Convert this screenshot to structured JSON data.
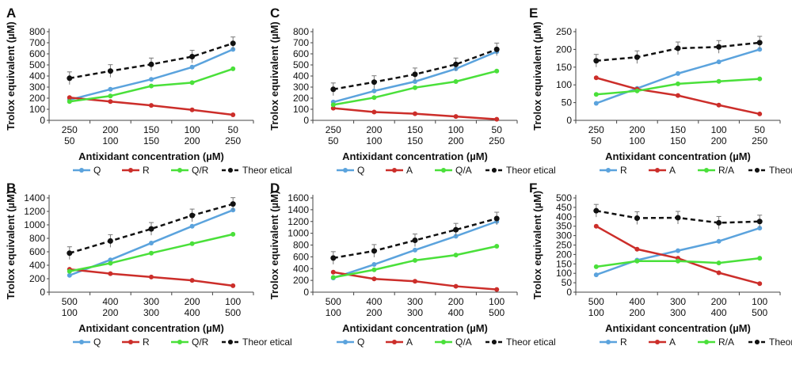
{
  "colors": {
    "Q": "#5ba3dd",
    "R": "#cc2e2a",
    "A": "#cc2e2a",
    "ratio": "#4ae03a",
    "theoretical": "#111111",
    "axis": "#444444"
  },
  "chart_data": [
    {
      "panel": "A",
      "type": "line",
      "categories": [
        [
          "250",
          "50"
        ],
        [
          "200",
          "100"
        ],
        [
          "150",
          "150"
        ],
        [
          "100",
          "200"
        ],
        [
          "50",
          "250"
        ]
      ],
      "ylabel": "Trolox equivalent (µM)",
      "xlabel": "Antixidant concentration (µM)",
      "ylim": [
        0,
        800
      ],
      "yticks": [
        0,
        100,
        200,
        300,
        400,
        500,
        600,
        700,
        800
      ],
      "grid": false,
      "legend_position": "bottom",
      "series": [
        {
          "name": "Q",
          "color_key": "Q",
          "dashed": false,
          "values": [
            185,
            280,
            370,
            480,
            640
          ]
        },
        {
          "name": "R",
          "color_key": "R",
          "dashed": false,
          "values": [
            205,
            170,
            135,
            95,
            50
          ]
        },
        {
          "name": "Q/R",
          "color_key": "ratio",
          "dashed": false,
          "values": [
            170,
            220,
            310,
            340,
            465
          ]
        },
        {
          "name": "Theor etical",
          "color_key": "theoretical",
          "dashed": true,
          "values": [
            380,
            445,
            505,
            575,
            695
          ]
        }
      ]
    },
    {
      "panel": "B",
      "type": "line",
      "categories": [
        [
          "500",
          "100"
        ],
        [
          "400",
          "200"
        ],
        [
          "300",
          "300"
        ],
        [
          "200",
          "400"
        ],
        [
          "100",
          "500"
        ]
      ],
      "ylabel": "Trolox equivalent (µM)",
      "xlabel": "Antixidant concentration (µM)",
      "ylim": [
        0,
        1400
      ],
      "yticks": [
        0,
        200,
        400,
        600,
        800,
        1000,
        1200,
        1400
      ],
      "grid": false,
      "legend_position": "bottom",
      "series": [
        {
          "name": "Q",
          "color_key": "Q",
          "dashed": false,
          "values": [
            250,
            480,
            730,
            980,
            1220
          ]
        },
        {
          "name": "R",
          "color_key": "R",
          "dashed": false,
          "values": [
            340,
            275,
            225,
            175,
            95
          ]
        },
        {
          "name": "Q/R",
          "color_key": "ratio",
          "dashed": false,
          "values": [
            310,
            430,
            580,
            720,
            860
          ]
        },
        {
          "name": "Theor etical",
          "color_key": "theoretical",
          "dashed": true,
          "values": [
            580,
            760,
            940,
            1140,
            1310
          ]
        }
      ]
    },
    {
      "panel": "C",
      "type": "line",
      "categories": [
        [
          "250",
          "50"
        ],
        [
          "200",
          "100"
        ],
        [
          "150",
          "150"
        ],
        [
          "100",
          "200"
        ],
        [
          "50",
          "250"
        ]
      ],
      "ylabel": "Trolox equivalent (µM)",
      "xlabel": "Antixidant concentration (µM)",
      "ylim": [
        0,
        800
      ],
      "yticks": [
        0,
        100,
        200,
        300,
        400,
        500,
        600,
        700,
        800
      ],
      "grid": false,
      "legend_position": "bottom",
      "series": [
        {
          "name": "Q",
          "color_key": "Q",
          "dashed": false,
          "values": [
            165,
            265,
            350,
            465,
            620
          ]
        },
        {
          "name": "A",
          "color_key": "A",
          "dashed": false,
          "values": [
            110,
            75,
            60,
            35,
            10
          ]
        },
        {
          "name": "Q/A",
          "color_key": "ratio",
          "dashed": false,
          "values": [
            140,
            205,
            295,
            350,
            445
          ]
        },
        {
          "name": "Theor etical",
          "color_key": "theoretical",
          "dashed": true,
          "values": [
            280,
            345,
            415,
            505,
            640
          ]
        }
      ]
    },
    {
      "panel": "D",
      "type": "line",
      "categories": [
        [
          "500",
          "100"
        ],
        [
          "400",
          "200"
        ],
        [
          "300",
          "300"
        ],
        [
          "200",
          "400"
        ],
        [
          "100",
          "500"
        ]
      ],
      "ylabel": "Trolox equivalent (µM)",
      "xlabel": "Antixidant concentration (µM)",
      "ylim": [
        0,
        1600
      ],
      "yticks": [
        0,
        200,
        400,
        600,
        800,
        1000,
        1200,
        1400,
        1600
      ],
      "grid": false,
      "legend_position": "bottom",
      "series": [
        {
          "name": "Q",
          "color_key": "Q",
          "dashed": false,
          "values": [
            240,
            470,
            715,
            950,
            1200
          ]
        },
        {
          "name": "A",
          "color_key": "A",
          "dashed": false,
          "values": [
            340,
            225,
            185,
            100,
            45
          ]
        },
        {
          "name": "Q/A",
          "color_key": "ratio",
          "dashed": false,
          "values": [
            250,
            380,
            540,
            630,
            780
          ]
        },
        {
          "name": "Theor etical",
          "color_key": "theoretical",
          "dashed": true,
          "values": [
            580,
            700,
            880,
            1060,
            1250
          ]
        }
      ]
    },
    {
      "panel": "E",
      "type": "line",
      "categories": [
        [
          "250",
          "50"
        ],
        [
          "200",
          "100"
        ],
        [
          "150",
          "150"
        ],
        [
          "100",
          "200"
        ],
        [
          "50",
          "250"
        ]
      ],
      "ylabel": "Trolox equivalent (µM)",
      "xlabel": "Antixidant concentration (µM)",
      "ylim": [
        0,
        250
      ],
      "yticks": [
        0,
        50,
        100,
        150,
        200,
        250
      ],
      "grid": false,
      "legend_position": "bottom",
      "series": [
        {
          "name": "R",
          "color_key": "Q",
          "dashed": false,
          "values": [
            48,
            90,
            132,
            165,
            200
          ]
        },
        {
          "name": "A",
          "color_key": "A",
          "dashed": false,
          "values": [
            120,
            88,
            70,
            43,
            18
          ]
        },
        {
          "name": "R/A",
          "color_key": "ratio",
          "dashed": false,
          "values": [
            73,
            83,
            103,
            110,
            117
          ]
        },
        {
          "name": "Theor etical",
          "color_key": "theoretical",
          "dashed": true,
          "values": [
            168,
            178,
            203,
            207,
            219
          ]
        }
      ]
    },
    {
      "panel": "F",
      "type": "line",
      "categories": [
        [
          "500",
          "100"
        ],
        [
          "400",
          "200"
        ],
        [
          "300",
          "300"
        ],
        [
          "200",
          "400"
        ],
        [
          "100",
          "500"
        ]
      ],
      "ylabel": "Trolox equivalent (µM)",
      "xlabel": "Antixidant concentration (µM)",
      "ylim": [
        0,
        500
      ],
      "yticks": [
        0,
        50,
        100,
        150,
        200,
        250,
        300,
        350,
        400,
        450,
        500
      ],
      "grid": false,
      "legend_position": "bottom",
      "series": [
        {
          "name": "R",
          "color_key": "Q",
          "dashed": false,
          "values": [
            92,
            170,
            220,
            270,
            340
          ]
        },
        {
          "name": "A",
          "color_key": "A",
          "dashed": false,
          "values": [
            350,
            228,
            180,
            103,
            45
          ]
        },
        {
          "name": "R/A",
          "color_key": "ratio",
          "dashed": false,
          "values": [
            135,
            165,
            165,
            155,
            180
          ]
        },
        {
          "name": "Theor etical",
          "color_key": "theoretical",
          "dashed": true,
          "values": [
            432,
            393,
            395,
            368,
            375
          ]
        }
      ]
    }
  ]
}
